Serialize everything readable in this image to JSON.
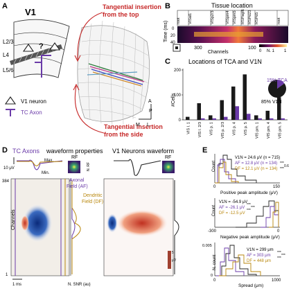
{
  "panels": {
    "A": "A",
    "B": "B",
    "C": "C",
    "D": "D",
    "E": "E"
  },
  "A": {
    "title": "V1",
    "layers": [
      "L2/3",
      "L4",
      "L5/6"
    ],
    "question": "?",
    "legend_neuron": "V1 neuron",
    "legend_axon": "TC Axon",
    "ann_top": "Tangential insertion from the top",
    "ann_side": "Tangential insertion from the side",
    "axes": {
      "A": "A",
      "P": "P",
      "M": "M",
      "L": "L"
    }
  },
  "B": {
    "title": "Tissue location",
    "regions": [
      "root",
      "VISal1",
      "VISp2/3",
      "VISpm4",
      "VISpm5",
      "RSPagl6",
      "RSPd23",
      "RSPd5",
      "root"
    ],
    "ylabel": "Time (ms)",
    "yticks": [
      "0",
      "20",
      "40"
    ],
    "xlabel": "Channels",
    "xticks": [
      "300",
      "100"
    ],
    "colorbar": [
      "0",
      "1"
    ],
    "colorbar_label": "N. 1"
  },
  "C": {
    "title": "Locations of TCA and V1N",
    "ylabel": "#Cells",
    "pie": [
      {
        "label": "15% TCA",
        "value": 15,
        "color": "#6a3aa8"
      },
      {
        "label": "85% V1N",
        "value": 85,
        "color": "#1a1a1a"
      }
    ],
    "chart_data": {
      "type": "bar",
      "categories": [
        "VIS l. 1",
        "VIS l. 2/3",
        "VIS p. 1",
        "VIS p. 2/3",
        "VIS p. 4",
        "VIS p. 5",
        "VIS pm. 1",
        "VIS pm. 4",
        "VIS pm. 5"
      ],
      "series": [
        {
          "name": "V1N",
          "values": [
            2,
            11,
            3,
            13,
            22,
            30,
            3,
            6,
            15
          ]
        },
        {
          "name": "TCA",
          "values": [
            0,
            1,
            1,
            2,
            9,
            4,
            1,
            1,
            1
          ]
        }
      ],
      "yticks": [
        "0",
        "100",
        "200"
      ],
      "ylim": [
        0,
        210
      ],
      "scale": 7
    }
  },
  "D": {
    "left_title": "TC Axons",
    "left_title2": "waveform properties",
    "right_title": "V1 Neurons waveform",
    "rf": "RF",
    "max": "Max.",
    "min": "Min.",
    "nrf": "N. RF",
    "scale_uv": "10 μV",
    "yticks": [
      "384",
      "1"
    ],
    "ylabel": "Channels",
    "af": "Axonal Field (AF)",
    "df": "Dendritic Field (DF)",
    "xlabel": "N. SNR (au)",
    "time_scale": "1 ms",
    "cbar_ticks": [
      "5",
      "0",
      "-5"
    ],
    "cbar_unit": "μV"
  },
  "E": {
    "panel1": {
      "v1n": "V1N = 24.6 μV (n = 715)",
      "af": "AF = 12.8 μV (n = 134)",
      "df": "DF = 12.1 μV (n = 134)",
      "stats": [
        "***",
        "***"
      ],
      "ratio": "0.6",
      "ylabel": "Count",
      "xticks": [
        "0",
        "150"
      ],
      "xlabel": "Positive peak amplitude (μV)"
    },
    "panel2": {
      "v1n": "V1N = -54.9 μV",
      "af": "AF = -26.1 μV",
      "df": "DF = -12.5 μV",
      "stats": [
        "***",
        "***",
        "***"
      ],
      "ylabel": "Count",
      "xticks": [
        "-300",
        "0"
      ],
      "xlabel": "Negative peak amplitude (μV)"
    },
    "panel3": {
      "v1n": "V1N = 299 μm",
      "af": "AF = 303 μm",
      "df": "DF = 448 μm",
      "stats": [
        "***",
        "***",
        "***"
      ],
      "ylabel": "N. count",
      "yticks": [
        "0.005",
        "0"
      ],
      "xticks": [
        "0",
        "1000"
      ],
      "xlabel": "Spread (μm)"
    }
  }
}
